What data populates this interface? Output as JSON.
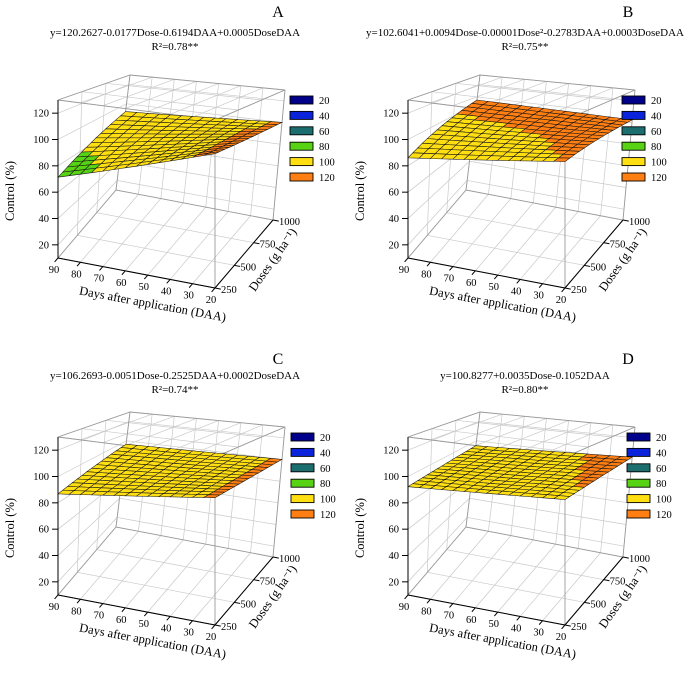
{
  "figure": {
    "background": "#ffffff",
    "description": "Four 3D response-surface plots (A-D) of weed control (%) as a function of herbicide dose and days after application"
  },
  "axes": {
    "daa": {
      "label": "Days after application (DAA)",
      "ticks": [
        90,
        80,
        70,
        60,
        50,
        40,
        30,
        20
      ],
      "min": 20,
      "max": 90
    },
    "dose": {
      "label": "Doses (g ha⁻¹)",
      "ticks": [
        250,
        500,
        750,
        1000
      ],
      "min": 250,
      "max": 1000
    },
    "control": {
      "label": "Control (%)",
      "ticks": [
        20,
        40,
        60,
        80,
        100,
        120
      ],
      "box_min": 10,
      "box_max": 130
    }
  },
  "legend": {
    "values": [
      20,
      40,
      60,
      80,
      100,
      120
    ],
    "colors": [
      "#00008B",
      "#0B24DB",
      "#1C6E6E",
      "#58D313",
      "#FFDF12",
      "#FF7F12"
    ]
  },
  "mesh": {
    "daa_cells": 14,
    "dose_cells": 14
  },
  "chart_data": [
    {
      "panel": "A",
      "type": "3d-surface",
      "equation": "y=120.2627-0.0177Dose-0.6194DAA+0.0005DoseDAA",
      "r2": "R²=0.78**",
      "coefficients": {
        "intercept": 120.2627,
        "dose": -0.0177,
        "dose_sq": 0,
        "daa": -0.6194,
        "dose_daa": 0.0005
      },
      "xlabel": "Days after application (DAA)",
      "ylabel": "Doses (g ha⁻¹)",
      "zlabel": "Control (%)",
      "zlim": [
        20,
        120
      ]
    },
    {
      "panel": "B",
      "type": "3d-surface",
      "equation": "y=102.6041+0.0094Dose-0.00001Dose²-0.2783DAA+0.0003DoseDAA",
      "r2": "R²=0.75**",
      "coefficients": {
        "intercept": 102.6041,
        "dose": 0.0094,
        "dose_sq": -1e-05,
        "daa": -0.2783,
        "dose_daa": 0.0003
      },
      "xlabel": "Days after application (DAA)",
      "ylabel": "Doses (g ha⁻¹)",
      "zlabel": "Control (%)",
      "zlim": [
        20,
        120
      ]
    },
    {
      "panel": "C",
      "type": "3d-surface",
      "equation": "y=106.2693-0.0051Dose-0.2525DAA+0.0002DoseDAA",
      "r2": "R²=0.74**",
      "coefficients": {
        "intercept": 106.2693,
        "dose": -0.0051,
        "dose_sq": 0,
        "daa": -0.2525,
        "dose_daa": 0.0002
      },
      "xlabel": "Days after application (DAA)",
      "ylabel": "Doses (g ha⁻¹)",
      "zlabel": "Control (%)",
      "zlim": [
        20,
        120
      ]
    },
    {
      "panel": "D",
      "type": "3d-surface",
      "equation": "y=100.8277+0.0035Dose-0.1052DAA",
      "r2": "R²=0.80**",
      "coefficients": {
        "intercept": 100.8277,
        "dose": 0.0035,
        "dose_sq": 0,
        "daa": -0.1052,
        "dose_daa": 0
      },
      "xlabel": "Days after application (DAA)",
      "ylabel": "Doses (g ha⁻¹)",
      "zlabel": "Control (%)",
      "zlim": [
        20,
        120
      ]
    }
  ]
}
